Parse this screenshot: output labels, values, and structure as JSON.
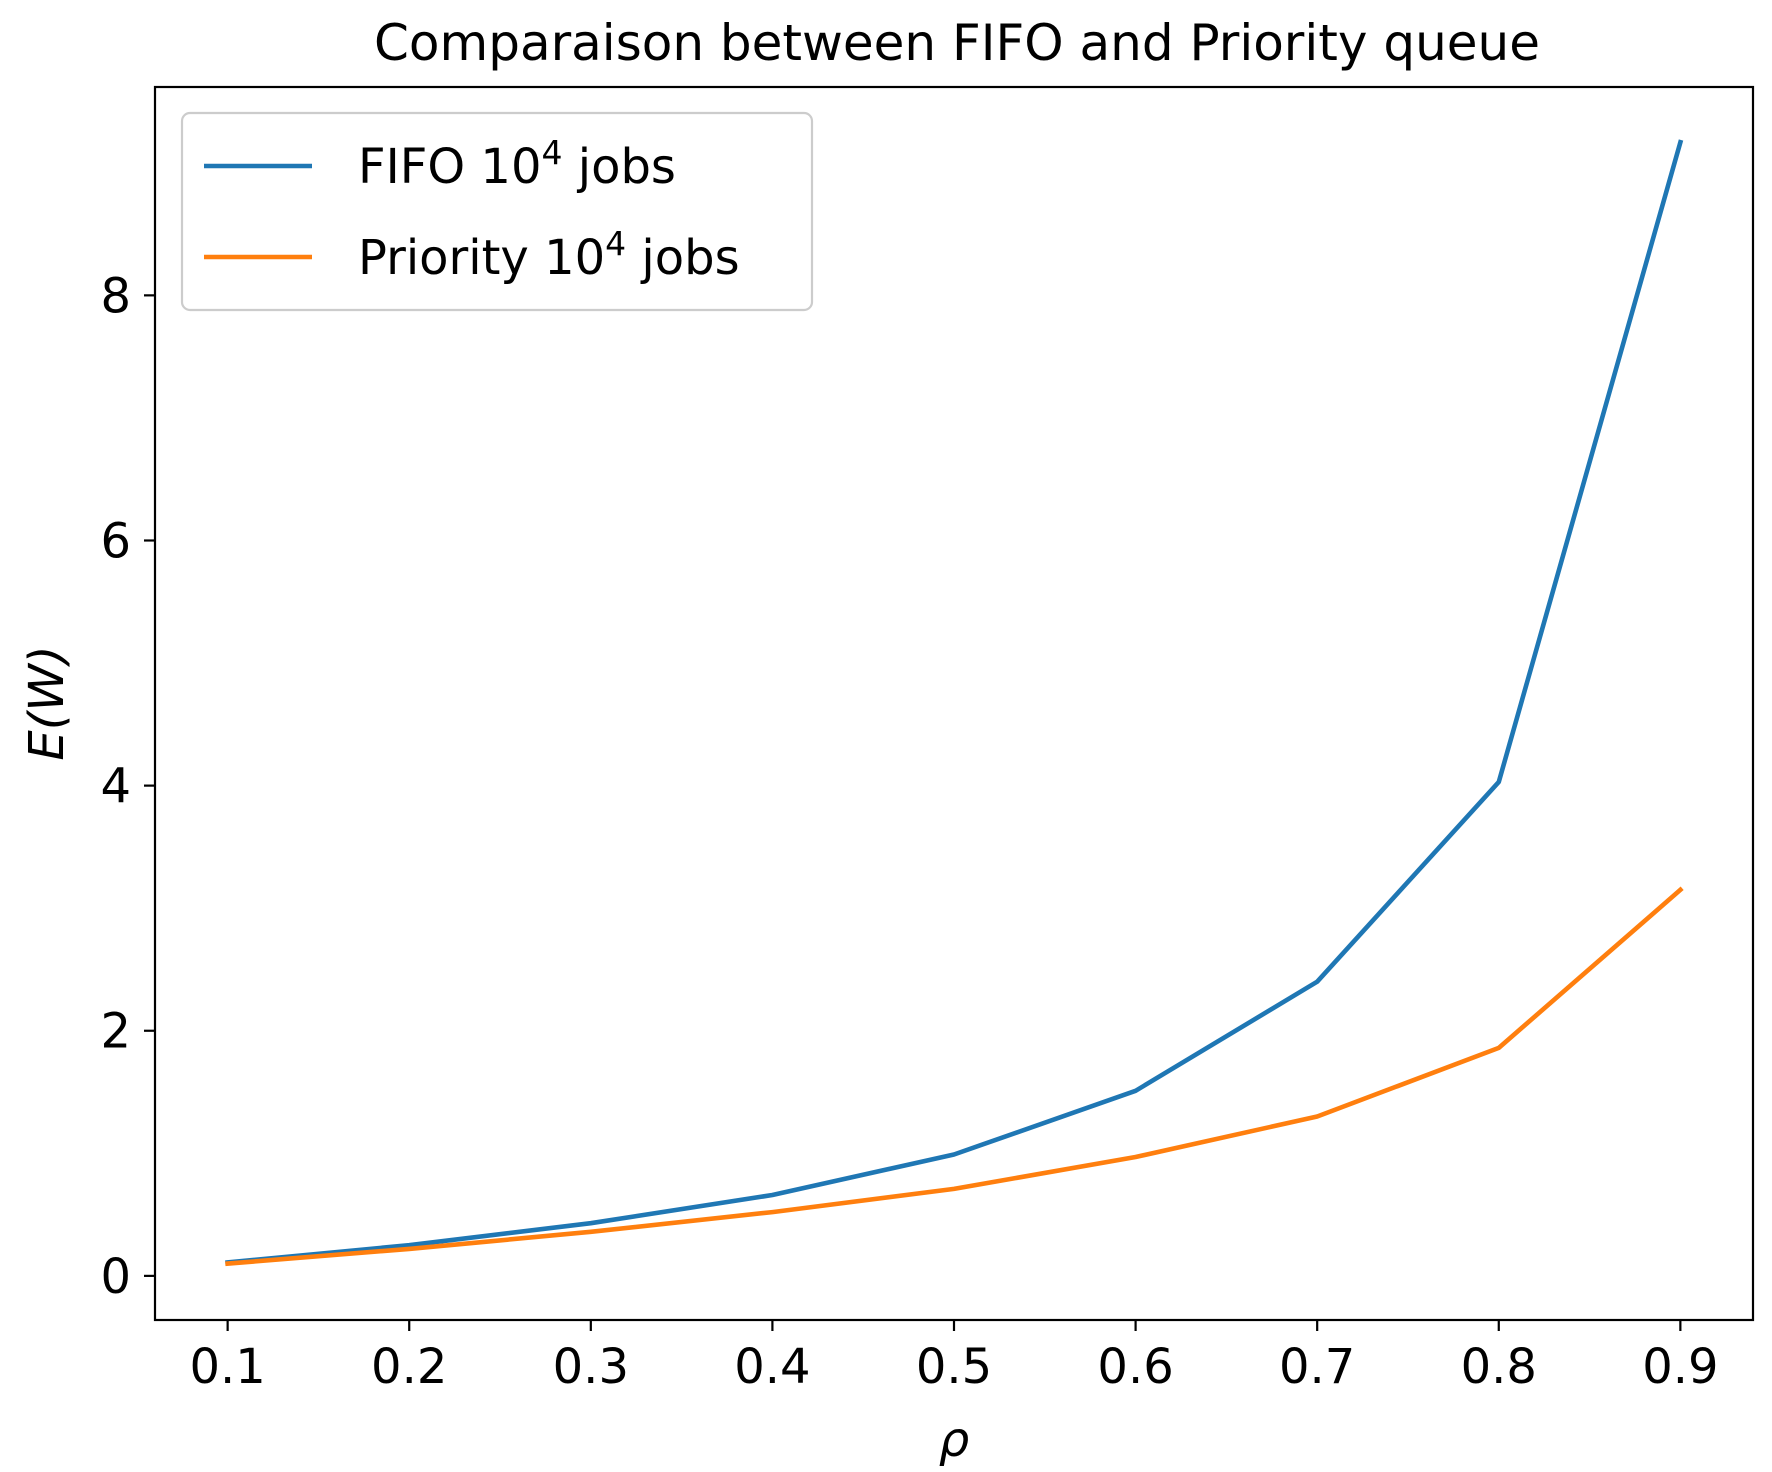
{
  "chart_data": {
    "type": "line",
    "title": "Comparaison between FIFO and Priority queue",
    "xlabel": "ρ",
    "ylabel": "E(W)",
    "x": [
      0.1,
      0.2,
      0.3,
      0.4,
      0.5,
      0.6,
      0.7,
      0.8,
      0.9
    ],
    "x_tick_labels": [
      "0.1",
      "0.2",
      "0.3",
      "0.4",
      "0.5",
      "0.6",
      "0.7",
      "0.8",
      "0.9"
    ],
    "y_ticks": [
      0,
      2,
      4,
      6,
      8
    ],
    "xlim": [
      0.06,
      0.94
    ],
    "ylim": [
      -0.36,
      9.7
    ],
    "grid": false,
    "legend_position": "top-left",
    "series": [
      {
        "name": "FIFO 10^4 jobs",
        "legend_prefix": "FIFO 10",
        "legend_exp": "4",
        "legend_suffix": " jobs",
        "color": "#1f77b4",
        "values": [
          0.11,
          0.25,
          0.43,
          0.66,
          0.99,
          1.51,
          2.4,
          4.03,
          9.25
        ]
      },
      {
        "name": "Priority 10^4 jobs",
        "legend_prefix": "Priority 10",
        "legend_exp": "4",
        "legend_suffix": " jobs",
        "color": "#ff7f0e",
        "values": [
          0.1,
          0.22,
          0.36,
          0.52,
          0.71,
          0.97,
          1.3,
          1.86,
          3.15
        ]
      }
    ]
  }
}
